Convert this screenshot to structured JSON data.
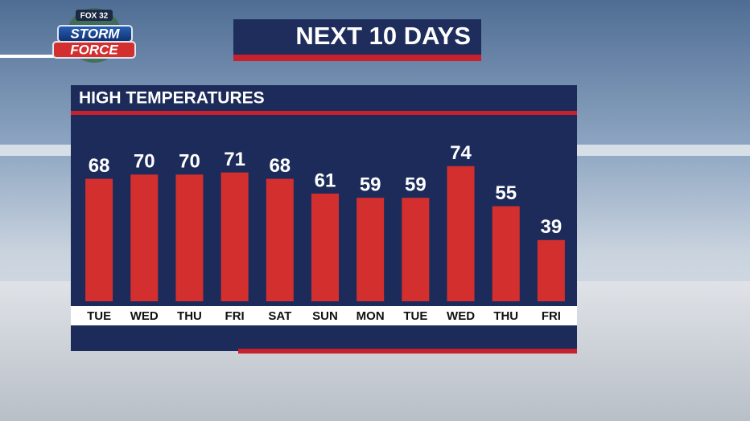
{
  "logo": {
    "network": "FOX 32",
    "line1": "STORM",
    "line2": "FORCE"
  },
  "chart_data": {
    "type": "bar",
    "title": "NEXT 10 DAYS",
    "subtitle": "HIGH TEMPERATURES",
    "categories": [
      "TUE",
      "WED",
      "THU",
      "FRI",
      "SAT",
      "SUN",
      "MON",
      "TUE",
      "WED",
      "THU",
      "FRI"
    ],
    "values": [
      68,
      70,
      70,
      71,
      68,
      61,
      59,
      59,
      74,
      55,
      39
    ],
    "color": "#d42f2f",
    "ylim": [
      10,
      80
    ]
  }
}
